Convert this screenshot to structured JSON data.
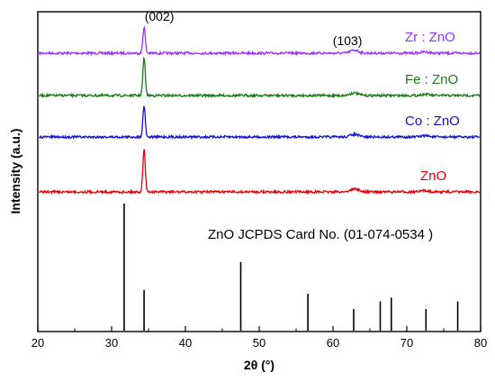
{
  "chart_data": {
    "type": "line",
    "xlabel": "2θ (°)",
    "ylabel": "Intensity (a.u.)",
    "xlim": [
      20,
      80
    ],
    "x_ticks": [
      "20",
      "30",
      "40",
      "50",
      "60",
      "70",
      "80"
    ],
    "y_ticks": [],
    "grid": false,
    "series": [
      {
        "name": "Zr : ZnO",
        "color": "#9b30ff",
        "baseline": 4.2,
        "peaks": [
          {
            "x": 34.4,
            "h": 1.05
          },
          {
            "x": 62.9,
            "h": 0.12
          },
          {
            "x": 72.5,
            "h": 0.05
          }
        ]
      },
      {
        "name": "Fe : ZnO",
        "color": "#1a7a1a",
        "baseline": 3.0,
        "peaks": [
          {
            "x": 34.4,
            "h": 1.5
          },
          {
            "x": 62.9,
            "h": 0.1
          },
          {
            "x": 72.5,
            "h": 0.05
          }
        ]
      },
      {
        "name": "Co : ZnO",
        "color": "#1010e0",
        "baseline": 1.85,
        "peaks": [
          {
            "x": 34.4,
            "h": 1.25
          },
          {
            "x": 62.9,
            "h": 0.1
          },
          {
            "x": 72.5,
            "h": 0.05
          }
        ]
      },
      {
        "name": "ZnO",
        "color": "#e8000b",
        "baseline": 0.0,
        "peaks": [
          {
            "x": 34.4,
            "h": 1.7
          },
          {
            "x": 62.9,
            "h": 0.12
          },
          {
            "x": 72.5,
            "h": 0.05
          }
        ]
      }
    ],
    "reference": {
      "label": "ZnO JCPDS Card No. (01-074-0534 )",
      "sticks": [
        {
          "x": 31.7,
          "h": 1.0
        },
        {
          "x": 34.4,
          "h": 0.32
        },
        {
          "x": 47.5,
          "h": 0.54
        },
        {
          "x": 56.6,
          "h": 0.29
        },
        {
          "x": 62.8,
          "h": 0.17
        },
        {
          "x": 66.4,
          "h": 0.23
        },
        {
          "x": 67.9,
          "h": 0.26
        },
        {
          "x": 72.6,
          "h": 0.17
        },
        {
          "x": 76.9,
          "h": 0.23
        }
      ]
    },
    "annotations": [
      {
        "text": "(002)",
        "x": 34.6
      },
      {
        "text": "(103)",
        "x": 62.9
      }
    ]
  }
}
